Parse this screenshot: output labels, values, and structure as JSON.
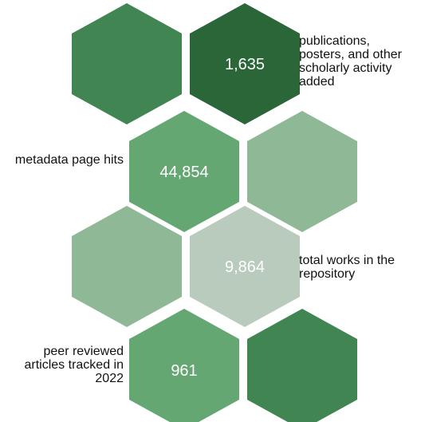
{
  "colors": {
    "medium_green": "#408552",
    "dark_green": "#2B6638",
    "light_green": "#65A773",
    "muted_green": "#8FB897",
    "pale_green": "#B8CBBD",
    "text_dark": "#111111",
    "value_text": "#ffffff"
  },
  "hexagons": [
    {
      "id": "r1-left",
      "fill": "medium_green",
      "value": ""
    },
    {
      "id": "r1-right",
      "fill": "dark_green",
      "value": "1,635"
    },
    {
      "id": "r2-left",
      "fill": "light_green",
      "value": "44,854"
    },
    {
      "id": "r2-right",
      "fill": "muted_green",
      "value": ""
    },
    {
      "id": "r3-left",
      "fill": "muted_green",
      "value": ""
    },
    {
      "id": "r3-right",
      "fill": "pale_green",
      "value": "9,864"
    },
    {
      "id": "r4-left",
      "fill": "light_green",
      "value": "961"
    },
    {
      "id": "r4-right",
      "fill": "medium_green",
      "value": ""
    }
  ],
  "stats": [
    {
      "value": "1,635",
      "label": "publications, posters, and other scholarly activity added"
    },
    {
      "value": "44,854",
      "label": "metadata page hits"
    },
    {
      "value": "9,864",
      "label": "total works in the repository"
    },
    {
      "value": "961",
      "label": "peer reviewed articles tracked in 2022"
    }
  ]
}
